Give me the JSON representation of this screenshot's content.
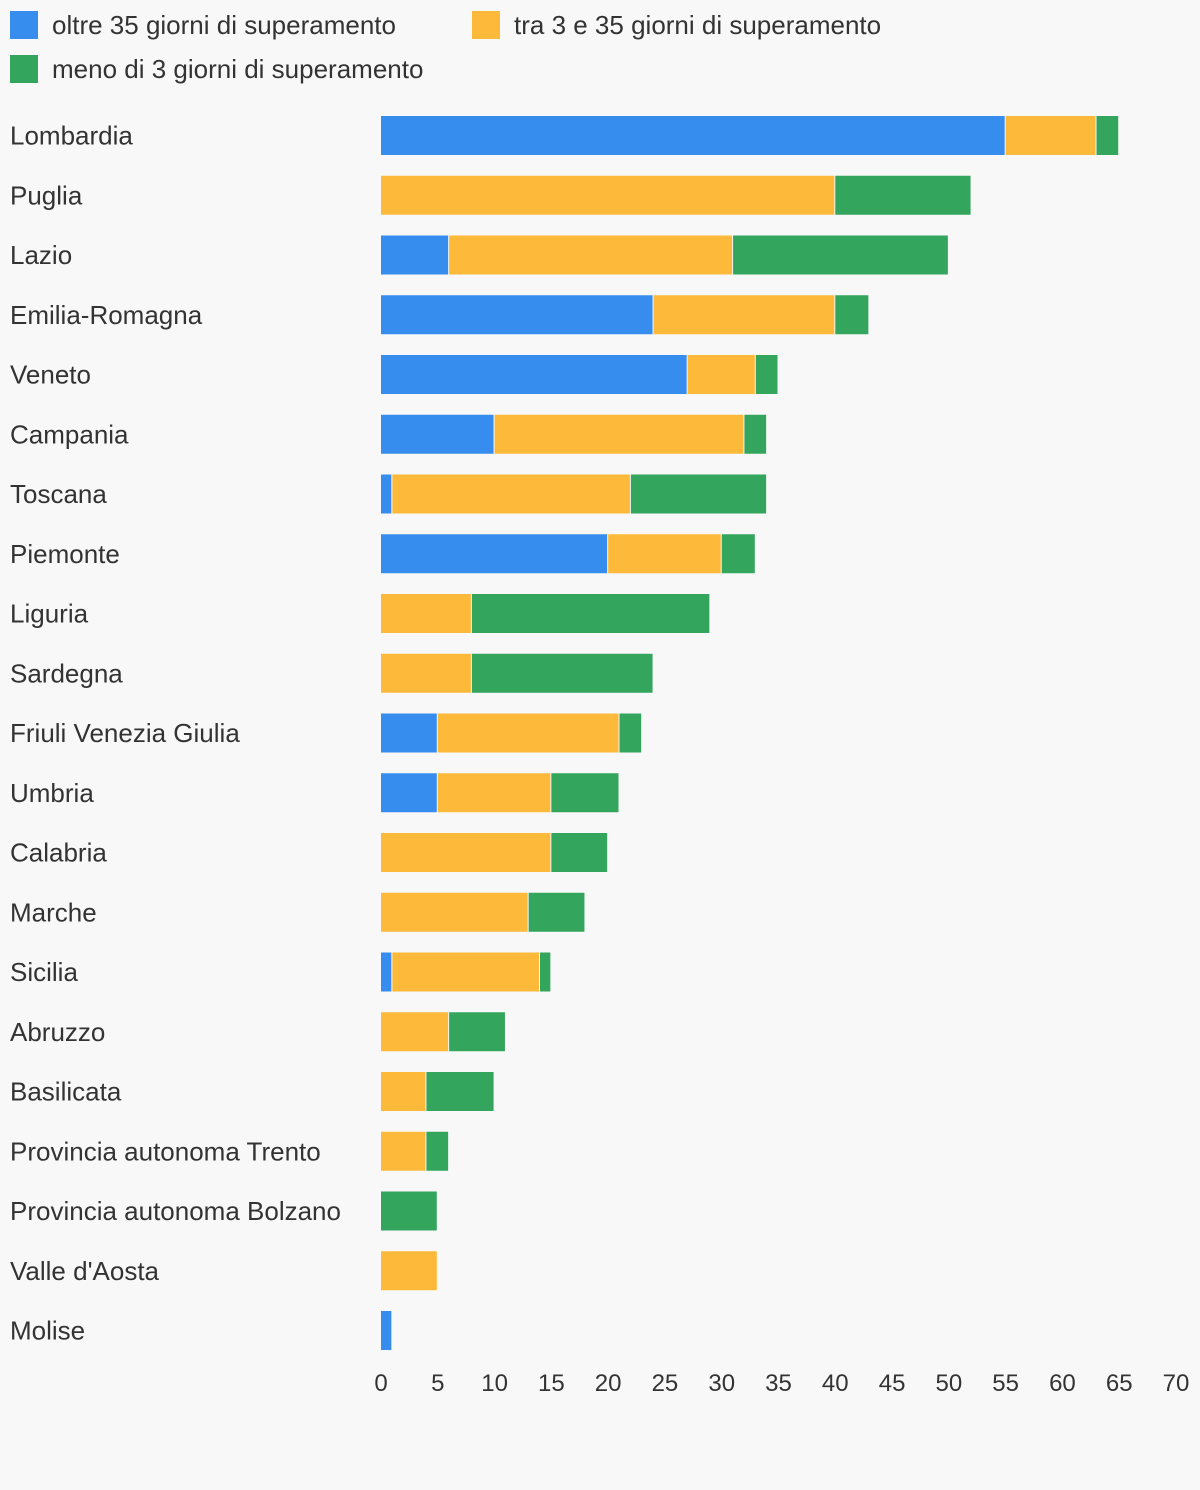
{
  "chart_data": {
    "type": "bar",
    "orientation": "horizontal",
    "stacked": true,
    "title": "",
    "xlabel": "",
    "ylabel": "",
    "xlim": [
      0,
      70
    ],
    "xticks": [
      0,
      5,
      10,
      15,
      20,
      25,
      30,
      35,
      40,
      45,
      50,
      55,
      60,
      65,
      70
    ],
    "grid": false,
    "legend_position": "top-left",
    "categories": [
      "Lombardia",
      "Puglia",
      "Lazio",
      "Emilia-Romagna",
      "Veneto",
      "Campania",
      "Toscana",
      "Piemonte",
      "Liguria",
      "Sardegna",
      "Friuli Venezia Giulia",
      "Umbria",
      "Calabria",
      "Marche",
      "Sicilia",
      "Abruzzo",
      "Basilicata",
      "Provincia autonoma Trento",
      "Provincia autonoma Bolzano",
      "Valle d'Aosta",
      "Molise"
    ],
    "series": [
      {
        "name": "oltre 35 giorni di superamento",
        "color": "#368ded",
        "values": [
          55,
          0,
          6,
          24,
          27,
          10,
          1,
          20,
          0,
          0,
          5,
          5,
          0,
          0,
          1,
          0,
          0,
          0,
          0,
          0,
          1
        ]
      },
      {
        "name": "tra 3 e 35 giorni di superamento",
        "color": "#fdb93a",
        "values": [
          8,
          40,
          25,
          16,
          6,
          22,
          21,
          10,
          8,
          8,
          16,
          10,
          15,
          13,
          13,
          6,
          4,
          4,
          0,
          5,
          0
        ]
      },
      {
        "name": "meno di 3 giorni di superamento",
        "color": "#33a55c",
        "values": [
          2,
          12,
          19,
          3,
          2,
          2,
          12,
          3,
          21,
          16,
          2,
          6,
          5,
          5,
          1,
          5,
          6,
          2,
          5,
          0,
          0
        ]
      }
    ]
  }
}
